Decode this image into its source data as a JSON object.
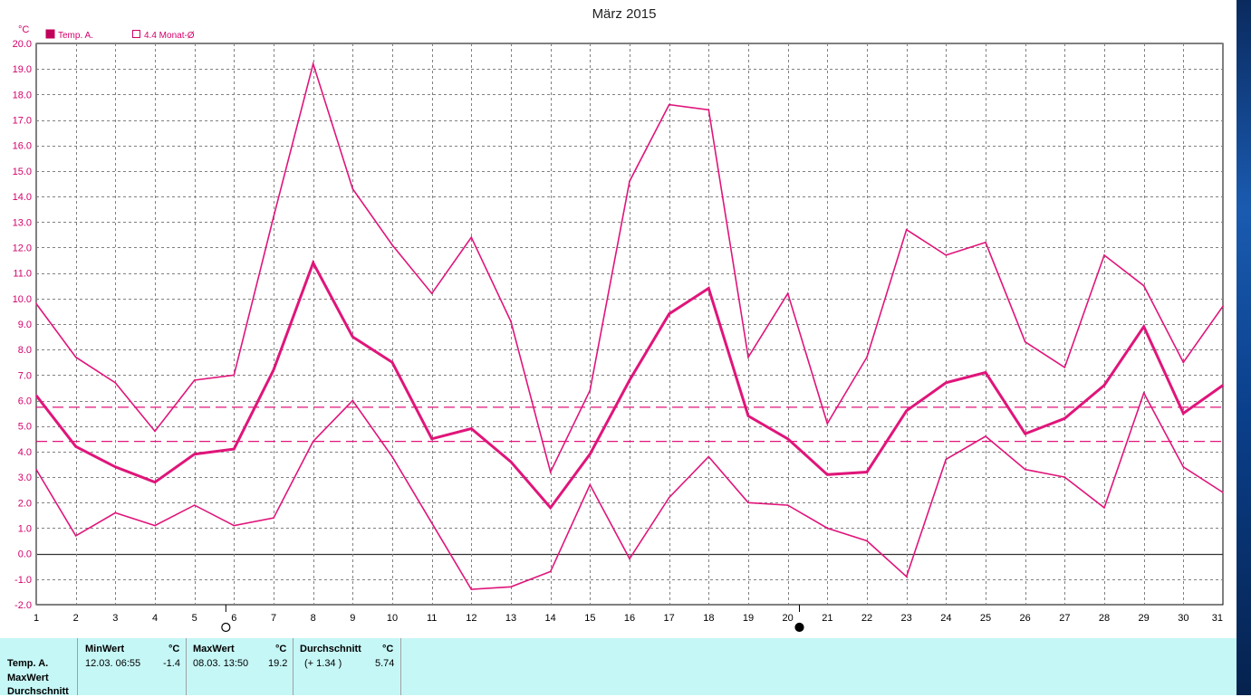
{
  "chart_data": {
    "type": "line",
    "title": "März 2015",
    "ylabel": "°C",
    "ylim": [
      -2.0,
      20.0
    ],
    "y_ticks": [
      "20.0",
      "19.0",
      "18.0",
      "17.0",
      "16.0",
      "15.0",
      "14.0",
      "13.0",
      "12.0",
      "11.0",
      "10.0",
      "9.0",
      "8.0",
      "7.0",
      "6.0",
      "5.0",
      "4.0",
      "3.0",
      "2.0",
      "1.0",
      "0.0",
      "-1.0",
      "-2.0"
    ],
    "x": [
      1,
      2,
      3,
      4,
      5,
      6,
      7,
      8,
      9,
      10,
      11,
      12,
      13,
      14,
      15,
      16,
      17,
      18,
      19,
      20,
      21,
      22,
      23,
      24,
      25,
      26,
      27,
      28,
      29,
      30,
      31
    ],
    "grid": true,
    "legend": [
      {
        "name": "Temp. A.",
        "filled": true
      },
      {
        "name": "4.4 Monat-Ø",
        "filled": false
      }
    ],
    "series": [
      {
        "role": "max",
        "values": [
          9.8,
          7.7,
          6.7,
          4.8,
          6.8,
          7.0,
          13.2,
          19.2,
          14.3,
          12.1,
          10.2,
          12.4,
          9.1,
          3.2,
          6.4,
          14.6,
          17.6,
          17.4,
          7.7,
          10.2,
          5.1,
          7.7,
          12.7,
          11.7,
          12.2,
          8.3,
          7.3,
          11.7,
          10.5,
          7.5,
          9.7
        ]
      },
      {
        "role": "avg",
        "values": [
          6.2,
          4.2,
          3.4,
          2.8,
          3.9,
          4.1,
          7.2,
          11.4,
          8.5,
          7.5,
          4.5,
          4.9,
          3.6,
          1.8,
          3.9,
          6.8,
          9.4,
          10.4,
          5.4,
          4.5,
          3.1,
          3.2,
          5.6,
          6.7,
          7.1,
          4.7,
          5.3,
          6.6,
          8.9,
          5.5,
          6.6
        ]
      },
      {
        "role": "min",
        "values": [
          3.3,
          0.7,
          1.6,
          1.1,
          1.9,
          1.1,
          1.4,
          4.4,
          6.0,
          3.8,
          1.2,
          -1.4,
          -1.3,
          -0.7,
          2.7,
          -0.2,
          2.2,
          3.8,
          2.0,
          1.9,
          1.0,
          0.5,
          -0.9,
          3.7,
          4.6,
          3.3,
          3.0,
          1.8,
          6.3,
          3.4,
          2.4
        ]
      }
    ],
    "reference_lines": [
      5.74,
      4.4
    ],
    "moon_phases": [
      {
        "day": 6,
        "phase": "full"
      },
      {
        "day": 20.5,
        "phase": "new"
      }
    ],
    "colors": {
      "line": "#e0157a",
      "grid": "#808080",
      "label": "#d4006a"
    }
  },
  "stats": {
    "row_labels": [
      "Temp. A.",
      "MaxWert",
      "Durchschnitt"
    ],
    "min": {
      "header": "MinWert",
      "unit": "°C",
      "datetime": "12.03.  06:55",
      "value": "-1.4"
    },
    "max": {
      "header": "MaxWert",
      "unit": "°C",
      "datetime": "08.03.  13:50",
      "value": "19.2"
    },
    "avg": {
      "header": "Durchschnitt",
      "unit": "°C",
      "delta": "(+ 1.34 )",
      "value": "5.74"
    }
  }
}
